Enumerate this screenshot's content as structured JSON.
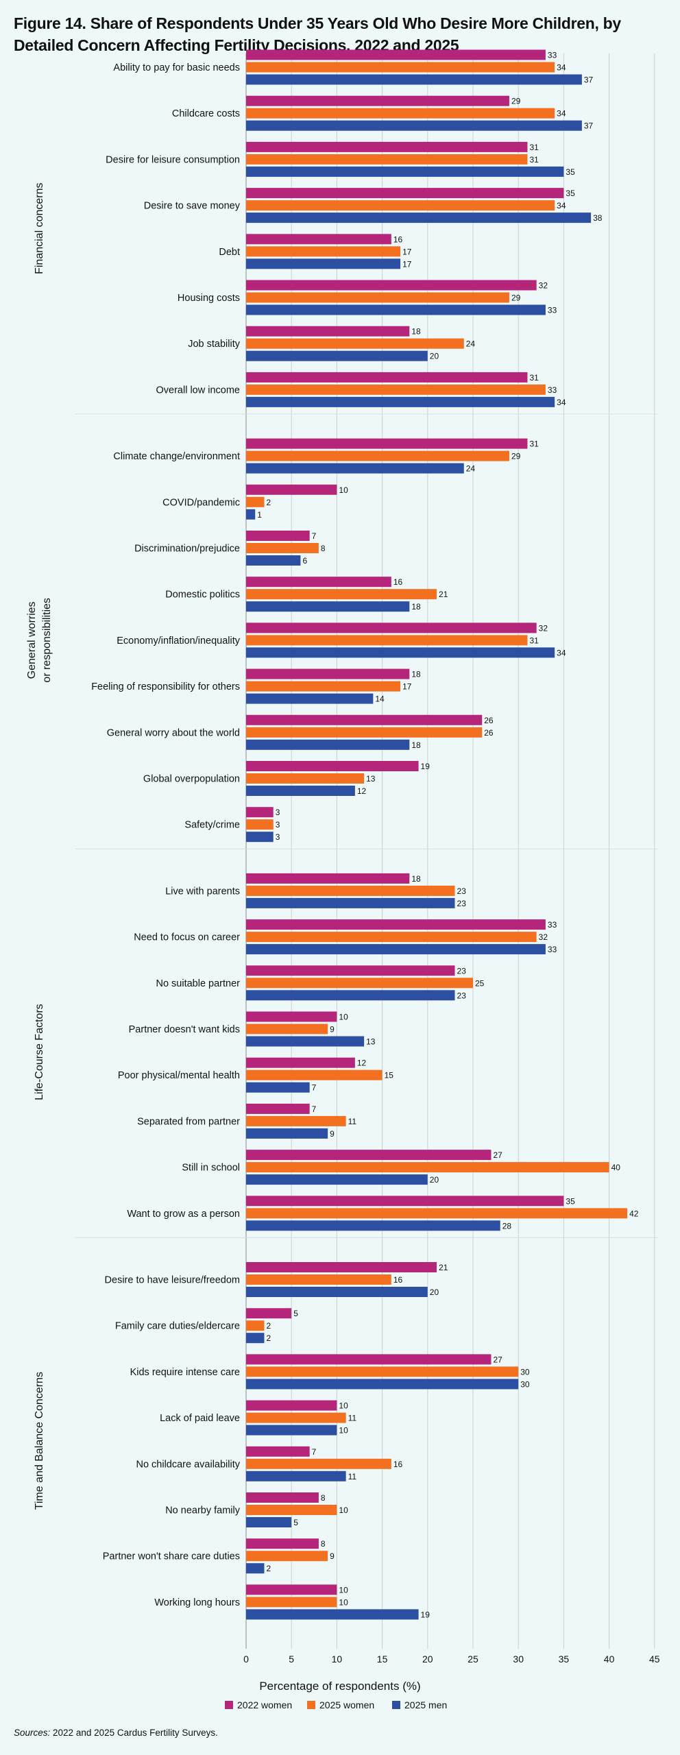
{
  "chart_data": {
    "type": "bar",
    "orientation": "horizontal",
    "title": "Figure 14. Share of Respondents Under 35 Years Old Who Desire More Children, by Detailed Concern Affecting Fertility Decisions, 2022 and 2025",
    "xlabel": "Percentage of respondents (%)",
    "xlim": [
      0,
      45
    ],
    "xticks": [
      0,
      5,
      10,
      15,
      20,
      25,
      30,
      35,
      40,
      45
    ],
    "grid": true,
    "legend_position": "bottom",
    "series": [
      {
        "name": "2022 women",
        "color": "#b5267a"
      },
      {
        "name": "2025 women",
        "color": "#f37021"
      },
      {
        "name": "2025 men",
        "color": "#2c4fa1"
      }
    ],
    "groups": [
      {
        "label": "Financial concerns",
        "categories": [
          {
            "name": "Ability to pay for basic needs",
            "values": [
              33,
              34,
              37
            ]
          },
          {
            "name": "Childcare costs",
            "values": [
              29,
              34,
              37
            ]
          },
          {
            "name": "Desire for leisure consumption",
            "values": [
              31,
              31,
              35
            ]
          },
          {
            "name": "Desire to save money",
            "values": [
              35,
              34,
              38
            ]
          },
          {
            "name": "Debt",
            "values": [
              16,
              17,
              17
            ]
          },
          {
            "name": "Housing costs",
            "values": [
              32,
              29,
              33
            ]
          },
          {
            "name": "Job stability",
            "values": [
              18,
              24,
              20
            ]
          },
          {
            "name": "Overall low income",
            "values": [
              31,
              33,
              34
            ]
          }
        ]
      },
      {
        "label": "General worries or responsibilities",
        "label_lines": [
          "General worries",
          "or responsibilities"
        ],
        "categories": [
          {
            "name": "Climate change/environment",
            "values": [
              31,
              29,
              24
            ]
          },
          {
            "name": "COVID/pandemic",
            "values": [
              10,
              2,
              1
            ]
          },
          {
            "name": "Discrimination/prejudice",
            "values": [
              7,
              8,
              6
            ]
          },
          {
            "name": "Domestic politics",
            "values": [
              16,
              21,
              18
            ]
          },
          {
            "name": "Economy/inflation/inequality",
            "values": [
              32,
              31,
              34
            ]
          },
          {
            "name": "Feeling of responsibility for others",
            "values": [
              18,
              17,
              14
            ]
          },
          {
            "name": "General worry about the world",
            "values": [
              26,
              26,
              18
            ]
          },
          {
            "name": "Global overpopulation",
            "values": [
              19,
              13,
              12
            ]
          },
          {
            "name": "Safety/crime",
            "values": [
              3,
              3,
              3
            ]
          }
        ]
      },
      {
        "label": "Life-Course Factors",
        "categories": [
          {
            "name": "Live with parents",
            "values": [
              18,
              23,
              23
            ]
          },
          {
            "name": "Need to focus on career",
            "values": [
              33,
              32,
              33
            ]
          },
          {
            "name": "No suitable partner",
            "values": [
              23,
              25,
              23
            ]
          },
          {
            "name": "Partner doesn't want kids",
            "values": [
              10,
              9,
              13
            ]
          },
          {
            "name": "Poor physical/mental health",
            "values": [
              12,
              15,
              7
            ]
          },
          {
            "name": "Separated from partner",
            "values": [
              7,
              11,
              9
            ]
          },
          {
            "name": "Still in school",
            "values": [
              27,
              40,
              20
            ]
          },
          {
            "name": "Want to grow as a person",
            "values": [
              35,
              42,
              28
            ]
          }
        ]
      },
      {
        "label": "Time and Balance Concerns",
        "categories": [
          {
            "name": "Desire to have leisure/freedom",
            "values": [
              21,
              16,
              20
            ]
          },
          {
            "name": "Family care duties/eldercare",
            "values": [
              5,
              2,
              2
            ]
          },
          {
            "name": "Kids require intense care",
            "values": [
              27,
              30,
              30
            ]
          },
          {
            "name": "Lack of paid leave",
            "values": [
              10,
              11,
              10
            ]
          },
          {
            "name": "No childcare availability",
            "values": [
              7,
              16,
              11
            ]
          },
          {
            "name": "No nearby family",
            "values": [
              8,
              10,
              5
            ]
          },
          {
            "name": "Partner won't share care duties",
            "values": [
              8,
              9,
              2
            ]
          },
          {
            "name": "Working long hours",
            "values": [
              10,
              10,
              19
            ]
          }
        ]
      }
    ]
  },
  "source": {
    "label": "Sources:",
    "text": " 2022 and 2025 Cardus Fertility Surveys."
  }
}
